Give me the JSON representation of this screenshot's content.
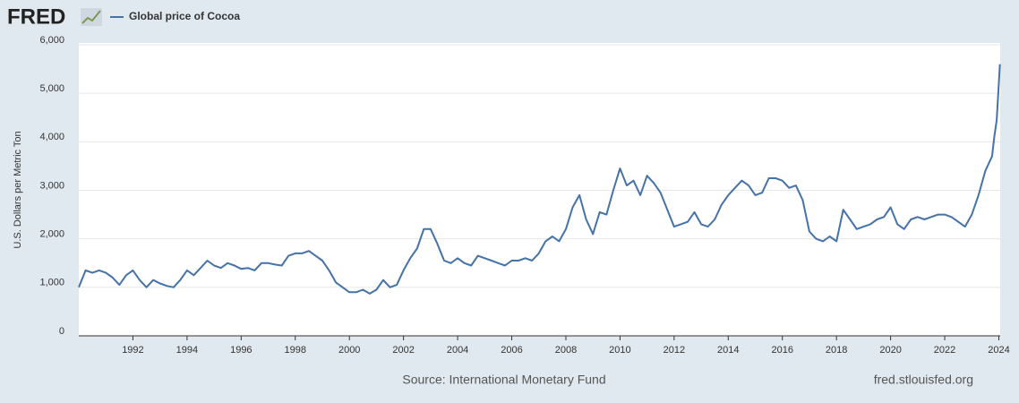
{
  "logo": "FRED",
  "chart_data": {
    "type": "line",
    "series": [
      {
        "name": "Global price of Cocoa",
        "color": "#4572a7",
        "values": [
          1000,
          1350,
          1300,
          1350,
          1300,
          1200,
          1050,
          1250,
          1350,
          1150,
          1000,
          1150,
          1080,
          1030,
          1000,
          1150,
          1350,
          1250,
          1400,
          1550,
          1450,
          1400,
          1500,
          1450,
          1380,
          1400,
          1350,
          1500,
          1500,
          1470,
          1450,
          1650,
          1700,
          1700,
          1750,
          1650,
          1550,
          1350,
          1100,
          1000,
          900,
          900,
          950,
          870,
          950,
          1150,
          1000,
          1050,
          1350,
          1600,
          1800,
          2200,
          2200,
          1900,
          1550,
          1500,
          1600,
          1500,
          1450,
          1650,
          1600,
          1550,
          1500,
          1450,
          1550,
          1550,
          1600,
          1550,
          1700,
          1950,
          2050,
          1950,
          2200,
          2650,
          2900,
          2400,
          2100,
          2550,
          2500,
          3000,
          3450,
          3100,
          3200,
          2900,
          3300,
          3150,
          2950,
          2600,
          2250,
          2300,
          2350,
          2550,
          2300,
          2250,
          2400,
          2700,
          2900,
          3050,
          3200,
          3100,
          2900,
          2950,
          3250,
          3250,
          3200,
          3050,
          3100,
          2800,
          2150,
          2000,
          1950,
          2050,
          1950,
          2600,
          2400,
          2200,
          2250,
          2300,
          2400,
          2450,
          2650,
          2300,
          2200,
          2400,
          2450,
          2400,
          2450,
          2500,
          2500,
          2450,
          2350,
          2250,
          2500,
          2900,
          3400,
          3700,
          4100,
          4450,
          5600
        ]
      }
    ],
    "x": [
      1990,
      1990.25,
      1990.5,
      1990.75,
      1991,
      1991.25,
      1991.5,
      1991.75,
      1992,
      1992.25,
      1992.5,
      1992.75,
      1993,
      1993.25,
      1993.5,
      1993.75,
      1994,
      1994.25,
      1994.5,
      1994.75,
      1995,
      1995.25,
      1995.5,
      1995.75,
      1996,
      1996.25,
      1996.5,
      1996.75,
      1997,
      1997.25,
      1997.5,
      1997.75,
      1998,
      1998.25,
      1998.5,
      1998.75,
      1999,
      1999.25,
      1999.5,
      1999.75,
      2000,
      2000.25,
      2000.5,
      2000.75,
      2001,
      2001.25,
      2001.5,
      2001.75,
      2002,
      2002.25,
      2002.5,
      2002.75,
      2003,
      2003.25,
      2003.5,
      2003.75,
      2004,
      2004.25,
      2004.5,
      2004.75,
      2005,
      2005.25,
      2005.5,
      2005.75,
      2006,
      2006.25,
      2006.5,
      2006.75,
      2007,
      2007.25,
      2007.5,
      2007.75,
      2008,
      2008.25,
      2008.5,
      2008.75,
      2009,
      2009.25,
      2009.5,
      2009.75,
      2010,
      2010.25,
      2010.5,
      2010.75,
      2011,
      2011.25,
      2011.5,
      2011.75,
      2012,
      2012.25,
      2012.5,
      2012.75,
      2013,
      2013.25,
      2013.5,
      2013.75,
      2014,
      2014.25,
      2014.5,
      2014.75,
      2015,
      2015.25,
      2015.5,
      2015.75,
      2016,
      2016.25,
      2016.5,
      2016.75,
      2017,
      2017.25,
      2017.5,
      2017.75,
      2018,
      2018.25,
      2018.5,
      2018.75,
      2019,
      2019.25,
      2019.5,
      2019.75,
      2020,
      2020.25,
      2020.5,
      2020.75,
      2021,
      2021.25,
      2021.5,
      2021.75,
      2022,
      2022.25,
      2022.5,
      2022.75,
      2023,
      2023.25,
      2023.5,
      2023.75,
      2023.83,
      2023.92,
      2024.04
    ],
    "ylabel": "U.S. Dollars per Metric Ton",
    "xlim": [
      1990,
      2024.05
    ],
    "xticks": [
      1992,
      1994,
      1996,
      1998,
      2000,
      2002,
      2004,
      2006,
      2008,
      2010,
      2012,
      2014,
      2016,
      2018,
      2020,
      2022,
      2024
    ],
    "ylim": [
      0,
      6000
    ],
    "yticks": [
      0,
      {
        "value": 1000,
        "label": "1,000"
      },
      {
        "value": 2000,
        "label": "2,000"
      },
      {
        "value": 3000,
        "label": "3,000"
      },
      {
        "value": 4000,
        "label": "4,000"
      },
      {
        "value": 5000,
        "label": "5,000"
      },
      {
        "value": 6000,
        "label": "6,000"
      }
    ],
    "grid": true
  },
  "footer": {
    "source": "Source: International Monetary Fund",
    "site": "fred.stlouisfed.org"
  }
}
